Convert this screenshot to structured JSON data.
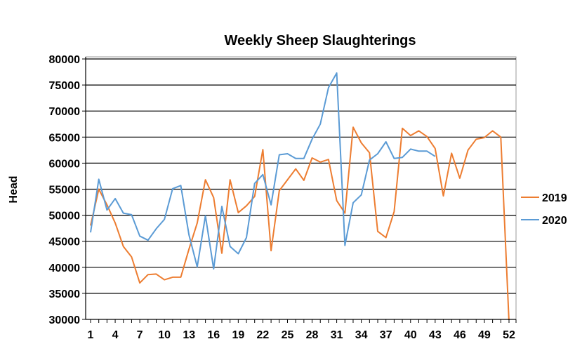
{
  "chart_data": {
    "type": "line",
    "title": "Weekly Sheep Slaughterings",
    "xlabel": "",
    "ylabel": "Head",
    "ylim": [
      30000,
      80000
    ],
    "yticks": [
      30000,
      35000,
      40000,
      45000,
      50000,
      55000,
      60000,
      65000,
      70000,
      75000,
      80000
    ],
    "xticks": [
      1,
      4,
      7,
      10,
      13,
      16,
      19,
      22,
      25,
      28,
      31,
      34,
      37,
      40,
      43,
      46,
      49,
      52
    ],
    "xlim": [
      1,
      52
    ],
    "grid": "horizontal",
    "legend_position": "right",
    "series": [
      {
        "name": "2019",
        "color": "#ED7D31",
        "x": [
          1,
          2,
          3,
          4,
          5,
          6,
          7,
          8,
          9,
          10,
          11,
          12,
          13,
          14,
          15,
          16,
          17,
          18,
          19,
          20,
          21,
          22,
          23,
          24,
          25,
          26,
          27,
          28,
          29,
          30,
          31,
          32,
          33,
          34,
          35,
          36,
          37,
          38,
          39,
          40,
          41,
          42,
          43,
          44,
          45,
          46,
          47,
          48,
          49,
          50,
          51,
          52
        ],
        "values": [
          48000,
          55000,
          52000,
          48500,
          44000,
          42000,
          37000,
          38600,
          38700,
          37600,
          38100,
          38100,
          43500,
          48500,
          56800,
          53400,
          42700,
          56800,
          50500,
          51800,
          53600,
          62600,
          43200,
          54700,
          56800,
          58900,
          56700,
          61000,
          60200,
          60700,
          52800,
          50400,
          66900,
          63900,
          62000,
          46900,
          45700,
          50700,
          66700,
          65300,
          66200,
          65100,
          62800,
          53700,
          61900,
          57100,
          62500,
          64600,
          64900,
          66200,
          65000,
          29500
        ]
      },
      {
        "name": "2020",
        "color": "#5B9BD5",
        "x": [
          1,
          2,
          3,
          4,
          5,
          6,
          7,
          8,
          9,
          10,
          11,
          12,
          13,
          14,
          15,
          16,
          17,
          18,
          19,
          20,
          21,
          22,
          23,
          24,
          25,
          26,
          27,
          28,
          29,
          30,
          31,
          32,
          33,
          34,
          35,
          36,
          37,
          38,
          39,
          40,
          41,
          42,
          43
        ],
        "values": [
          46700,
          56900,
          51000,
          53200,
          50400,
          50100,
          46000,
          45200,
          47400,
          49200,
          55100,
          55700,
          46200,
          40100,
          49900,
          39700,
          51700,
          44000,
          42600,
          45700,
          56100,
          57800,
          52000,
          61600,
          61800,
          60900,
          60900,
          64600,
          67500,
          74500,
          77300,
          44200,
          52400,
          53900,
          60600,
          61800,
          64100,
          60900,
          61100,
          62700,
          62300,
          62300,
          61300
        ]
      }
    ]
  }
}
